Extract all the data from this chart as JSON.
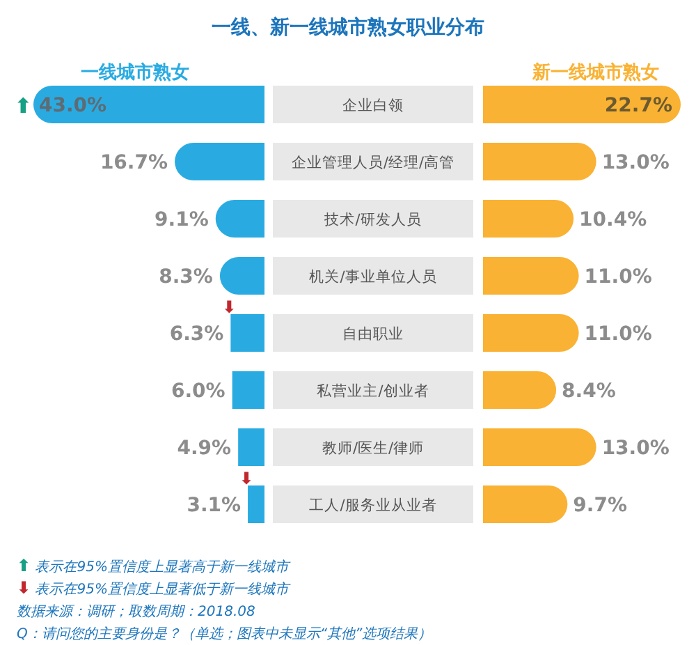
{
  "chart_data": [
    {
      "type": "bar",
      "orientation": "horizontal",
      "title": "一线、新一线城市熟女职业分布",
      "categories": [
        "企业白领",
        "企业管理人员/经理/高管",
        "技术/研发人员",
        "机关/事业单位人员",
        "自由职业",
        "私营业主/创业者",
        "教师/医生/律师",
        "工人/服务业从业者"
      ],
      "xlim": [
        43.0,
        0
      ],
      "series": [
        {
          "name": "一线城市熟女",
          "color": "#29abe2",
          "values": [
            43.0,
            16.7,
            9.1,
            8.3,
            6.3,
            6.0,
            4.9,
            3.1
          ],
          "value_labels": [
            "43.0%",
            "16.7%",
            "9.1%",
            "8.3%",
            "6.3%",
            "6.0%",
            "4.9%",
            "3.1%"
          ]
        }
      ],
      "annotations": [
        {
          "text": "⬆",
          "x": 43.0,
          "y": "企业白领"
        },
        {
          "text": "⬇",
          "x": 6.3,
          "y": "自由职业"
        },
        {
          "text": "⬇",
          "x": 3.1,
          "y": "工人/服务业从业者"
        },
        "⬆ 表示在95%置信度上显著高于新一线城市",
        "⬇ 表示在95%置信度上显著低于新一线城市",
        "数据来源：调研；取数周期：2018.08",
        "Q：请问您的主要身份是？（单选；图表中未显示“其他”选项结果）"
      ]
    },
    {
      "type": "bar",
      "orientation": "horizontal",
      "categories": [
        null,
        null,
        null,
        null,
        null,
        null,
        null,
        null
      ],
      "xlim": [
        0,
        22.7
      ],
      "series": [
        {
          "name": "新一线城市熟女",
          "color": "#f9b233",
          "values": [
            22.7,
            13.0,
            10.4,
            11.0,
            11.0,
            8.4,
            13.0,
            9.7
          ],
          "value_labels": [
            "22.7%",
            "13.0%",
            "10.4%",
            "11.0%",
            "11.0%",
            "8.4%",
            "13.0%",
            "9.7%"
          ]
        }
      ]
    }
  ]
}
